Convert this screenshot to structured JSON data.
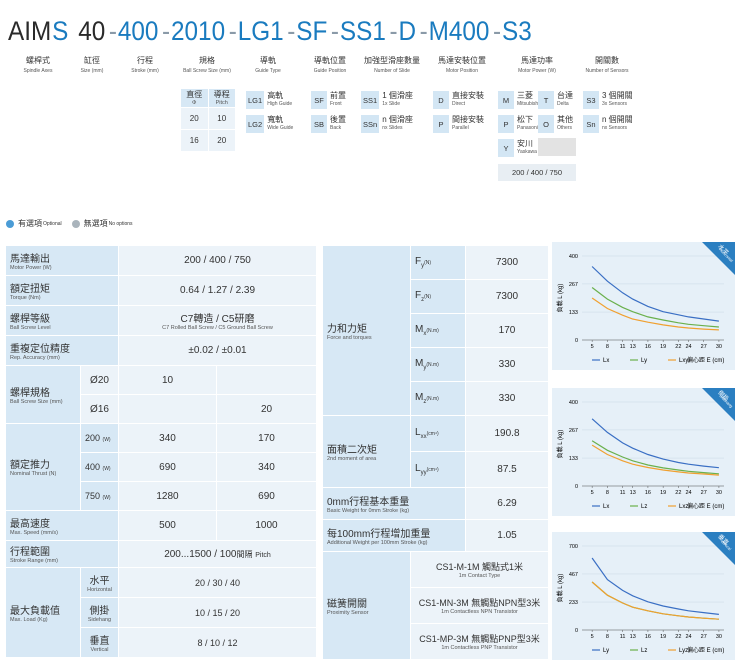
{
  "header": {
    "code": [
      {
        "text": "AIM",
        "style": "dark"
      },
      {
        "text": "S",
        "style": "blue"
      },
      {
        "text": "40",
        "style": "dark"
      },
      {
        "text": "-",
        "style": "dash"
      },
      {
        "text": "400",
        "style": "blue"
      },
      {
        "text": "-",
        "style": "dash"
      },
      {
        "text": "2010",
        "style": "blue"
      },
      {
        "text": "-",
        "style": "dash"
      },
      {
        "text": "LG1",
        "style": "blue"
      },
      {
        "text": "-",
        "style": "dash"
      },
      {
        "text": "SF",
        "style": "blue"
      },
      {
        "text": "-",
        "style": "dash"
      },
      {
        "text": "SS1",
        "style": "blue"
      },
      {
        "text": "-",
        "style": "dash"
      },
      {
        "text": "D",
        "style": "blue"
      },
      {
        "text": "-",
        "style": "dash"
      },
      {
        "text": "M400",
        "style": "blue"
      },
      {
        "text": "-",
        "style": "dash"
      },
      {
        "text": "S3",
        "style": "blue"
      }
    ],
    "fields": [
      {
        "label": "螺桿式",
        "en": "Spindle Axes"
      },
      {
        "label": "缸徑",
        "en": "Size (mm)"
      },
      {
        "label": "行程",
        "en": "Stroke (mm)"
      },
      {
        "label": "規格",
        "en": "Ball Screw Size (mm)"
      },
      {
        "label": "導軌",
        "en": "Guide Type"
      },
      {
        "label": "導軌位置",
        "en": "Guide Position"
      },
      {
        "label": "加強型滑座數量",
        "en": "Number of Slide"
      },
      {
        "label": "馬達安裝位置",
        "en": "Motor Position"
      },
      {
        "label": "馬達功率",
        "en": "Motor Power (W)"
      },
      {
        "label": "開關數",
        "en": "Number of Sensors"
      }
    ]
  },
  "options": {
    "screw": {
      "head": [
        "直徑",
        "導程"
      ],
      "head_en": [
        "Φ",
        "Pitch"
      ],
      "rows": [
        [
          "20",
          "10"
        ],
        [
          "16",
          "20"
        ]
      ]
    },
    "guide": [
      {
        "code": "LG1",
        "name": "高軌",
        "en": "High Guide"
      },
      {
        "code": "LG2",
        "name": "寬軌",
        "en": "Wide Guide"
      }
    ],
    "position": [
      {
        "code": "SF",
        "name": "前置",
        "en": "Front"
      },
      {
        "code": "SB",
        "name": "後置",
        "en": "Back"
      }
    ],
    "slide": [
      {
        "code": "SS1",
        "name": "1 個滑座",
        "en": "1x Slide"
      },
      {
        "code": "SSn",
        "name": "n 個滑座",
        "en": "nx Slides"
      }
    ],
    "motor_pos": [
      {
        "code": "D",
        "name": "直接安裝",
        "en": "Direct"
      },
      {
        "code": "P",
        "name": "間接安裝",
        "en": "Parallel"
      }
    ],
    "motor": [
      {
        "code": "M",
        "name": "三菱",
        "en": "Mitsubishi"
      },
      {
        "code": "T",
        "name": "台達",
        "en": "Delta"
      },
      {
        "code": "P",
        "name": "松下",
        "en": "Panasonic"
      },
      {
        "code": "O",
        "name": "其他",
        "en": "Others"
      },
      {
        "code": "Y",
        "name": "安川",
        "en": "Yaskawa"
      }
    ],
    "power": "200 / 400 / 750",
    "sensor": [
      {
        "code": "S3",
        "name": "3 個開關",
        "en": "3x Sensors"
      },
      {
        "code": "Sn",
        "name": "n 個開關",
        "en": "nx Sensors"
      }
    ]
  },
  "legend": {
    "optional": "有選項",
    "optional_en": "Optional",
    "none": "無選項",
    "none_en": "No options"
  },
  "spec": {
    "power": {
      "label": "馬達輸出",
      "en": "Motor Power (W)",
      "value": "200 / 400 / 750"
    },
    "torque": {
      "label": "額定扭矩",
      "en": "Torque (Nm)",
      "value": "0.64 / 1.27 / 2.39"
    },
    "level": {
      "label": "螺桿等級",
      "en": "Ball Screw Level",
      "value": "C7轉造 / C5研磨",
      "value_en": "C7 Rolled Ball Screw / C5 Ground Ball Screw"
    },
    "accuracy": {
      "label": "重複定位精度",
      "en": "Rep. Accuracy (mm)",
      "value": "±0.02 / ±0.01"
    },
    "screw": {
      "label": "螺桿規格",
      "en": "Ball Screw Size (mm)",
      "rows": [
        {
          "size": "Ø20",
          "value": "10"
        },
        {
          "size": "Ø16",
          "value": "20"
        }
      ]
    },
    "thrust": {
      "label": "額定推力",
      "en": "Nominal Thrust (N)",
      "unit": "(W)",
      "rows": [
        {
          "power": "200",
          "values": [
            "340",
            "170"
          ]
        },
        {
          "power": "400",
          "values": [
            "690",
            "340"
          ]
        },
        {
          "power": "750",
          "values": [
            "1280",
            "690"
          ]
        }
      ]
    },
    "speed": {
      "label": "最高速度",
      "en": "Max. Speed (mm/s)",
      "values": [
        "500",
        "1000"
      ]
    },
    "stroke": {
      "label": "行程範圍",
      "en": "Stroke Range (mm)",
      "value": "200...1500 / 100",
      "pitch": "間隔",
      "pitch_en": "Pitch"
    },
    "load": {
      "label": "最大負載值",
      "en": "Max. Load (Kg)",
      "rows": [
        {
          "name": "水平",
          "en": "Horizontal",
          "value": "20 / 30 / 40"
        },
        {
          "name": "側掛",
          "en": "Sidehang",
          "value": "10 / 15 / 20"
        },
        {
          "name": "垂直",
          "en": "Vertical",
          "value": "8 / 10 / 12"
        }
      ]
    }
  },
  "props": {
    "force": {
      "label": "力和力矩",
      "en": "Force and torques",
      "rows": [
        {
          "sym": "F",
          "sub": "y",
          "unit": "(N)",
          "value": 7300
        },
        {
          "sym": "F",
          "sub": "z",
          "unit": "(N)",
          "value": 7300
        },
        {
          "sym": "M",
          "sub": "x",
          "unit": "(N.m)",
          "value": 170
        },
        {
          "sym": "M",
          "sub": "y",
          "unit": "(N.m)",
          "value": 330
        },
        {
          "sym": "M",
          "sub": "z",
          "unit": "(N.m)",
          "value": 330
        }
      ]
    },
    "moment": {
      "label": "面積二次矩",
      "en": "2nd moment of area",
      "rows": [
        {
          "sym": "L",
          "sub": "xx",
          "unit": "(cm⁴)",
          "value": 190.8
        },
        {
          "sym": "L",
          "sub": "yy",
          "unit": "(cm⁴)",
          "value": 87.5
        }
      ]
    },
    "weight0": {
      "label": "0mm行程基本重量",
      "en": "Basic Weight for 0mm Stroke (kg)",
      "value": 6.29
    },
    "weight100": {
      "label": "每100mm行程增加重量",
      "en": "Additional Weight per 100mm Stroke (kg)",
      "value": 1.05
    },
    "sensor": {
      "label": "磁簧開關",
      "en": "Proximity Sensor",
      "rows": [
        {
          "name": "CS1-M-1M 觸點式1米",
          "en": "1m Contact Type"
        },
        {
          "name": "CS1-MN-3M 無觸點NPN型3米",
          "en": "1m Contactless NPN Transistor"
        },
        {
          "name": "CS1-MP-3M 無觸點PNP型3米",
          "en": "1m Contactless PNP Transistor"
        }
      ]
    }
  },
  "chart_data": [
    {
      "type": "line",
      "title": "水平",
      "subtitle": "Horizontal",
      "ylabel": "負載 L (kg)",
      "xlabel": "偏心距 E (cm)",
      "x": [
        5,
        8,
        11,
        13,
        16,
        19,
        22,
        24,
        27,
        30
      ],
      "xlim": [
        3,
        31
      ],
      "xticks": [
        5,
        8,
        11,
        13,
        16,
        19,
        22,
        24,
        27,
        30
      ],
      "ylim": [
        0,
        400
      ],
      "yticks": [
        0,
        133,
        267,
        400
      ],
      "grid": true,
      "series": [
        {
          "name": "Lx",
          "color": "#3a6fc4",
          "values": [
            350,
            280,
            225,
            195,
            160,
            135,
            120,
            110,
            100,
            90
          ]
        },
        {
          "name": "Ly",
          "color": "#6ab04c",
          "values": [
            250,
            195,
            155,
            135,
            110,
            95,
            82,
            75,
            68,
            62
          ]
        },
        {
          "name": "Lxy",
          "color": "#f0a030",
          "values": [
            200,
            150,
            118,
            100,
            85,
            72,
            62,
            57,
            52,
            48
          ]
        }
      ]
    },
    {
      "type": "line",
      "title": "側掛",
      "subtitle": "Sidehang",
      "ylabel": "負載 L (kg)",
      "xlabel": "偏心距 E (cm)",
      "x": [
        5,
        8,
        11,
        13,
        16,
        19,
        22,
        24,
        27,
        30
      ],
      "xlim": [
        3,
        31
      ],
      "xticks": [
        5,
        8,
        11,
        13,
        16,
        19,
        22,
        24,
        27,
        30
      ],
      "ylim": [
        0,
        400
      ],
      "yticks": [
        0,
        133,
        267,
        400
      ],
      "grid": true,
      "series": [
        {
          "name": "Lx",
          "color": "#3a6fc4",
          "values": [
            320,
            255,
            205,
            180,
            150,
            128,
            112,
            104,
            95,
            87
          ]
        },
        {
          "name": "Lz",
          "color": "#6ab04c",
          "values": [
            215,
            170,
            138,
            120,
            100,
            86,
            76,
            70,
            64,
            58
          ]
        },
        {
          "name": "Lxz",
          "color": "#f0a030",
          "values": [
            195,
            150,
            120,
            104,
            88,
            76,
            67,
            62,
            57,
            52
          ]
        }
      ]
    },
    {
      "type": "line",
      "title": "垂直",
      "subtitle": "Vertical",
      "ylabel": "負載 L (kg)",
      "xlabel": "偏心距 E (cm)",
      "x": [
        5,
        8,
        11,
        13,
        16,
        19,
        22,
        24,
        27,
        30
      ],
      "xlim": [
        3,
        31
      ],
      "xticks": [
        5,
        8,
        11,
        13,
        16,
        19,
        22,
        24,
        27,
        30
      ],
      "ylim": [
        0,
        700
      ],
      "yticks": [
        0,
        233,
        467,
        700
      ],
      "grid": true,
      "series": [
        {
          "name": "Ly",
          "color": "#3a6fc4",
          "values": [
            600,
            420,
            330,
            285,
            235,
            200,
            175,
            160,
            145,
            130
          ]
        },
        {
          "name": "Lz",
          "color": "#6ab04c",
          "values": [
            400,
            290,
            225,
            190,
            160,
            135,
            118,
            108,
            98,
            90
          ]
        },
        {
          "name": "Lyz",
          "color": "#f0a030",
          "values": [
            400,
            290,
            225,
            190,
            160,
            135,
            118,
            108,
            98,
            90
          ]
        }
      ]
    }
  ]
}
